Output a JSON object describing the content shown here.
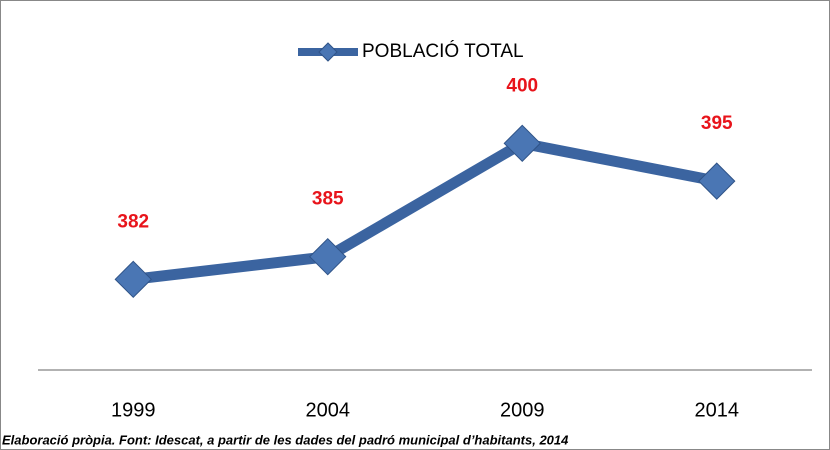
{
  "chart_data": {
    "type": "line",
    "categories": [
      "1999",
      "2004",
      "2009",
      "2014"
    ],
    "series": [
      {
        "name": "POBLACIÓ TOTAL",
        "color": "#3b64a0",
        "values": [
          382,
          385,
          400,
          395
        ]
      }
    ],
    "ylim": [
      370,
      415
    ],
    "legend": "top",
    "source": "Elaboració pròpia. Font: Idescat, a partir de les dades del padró municipal d’habitants, 2014"
  }
}
